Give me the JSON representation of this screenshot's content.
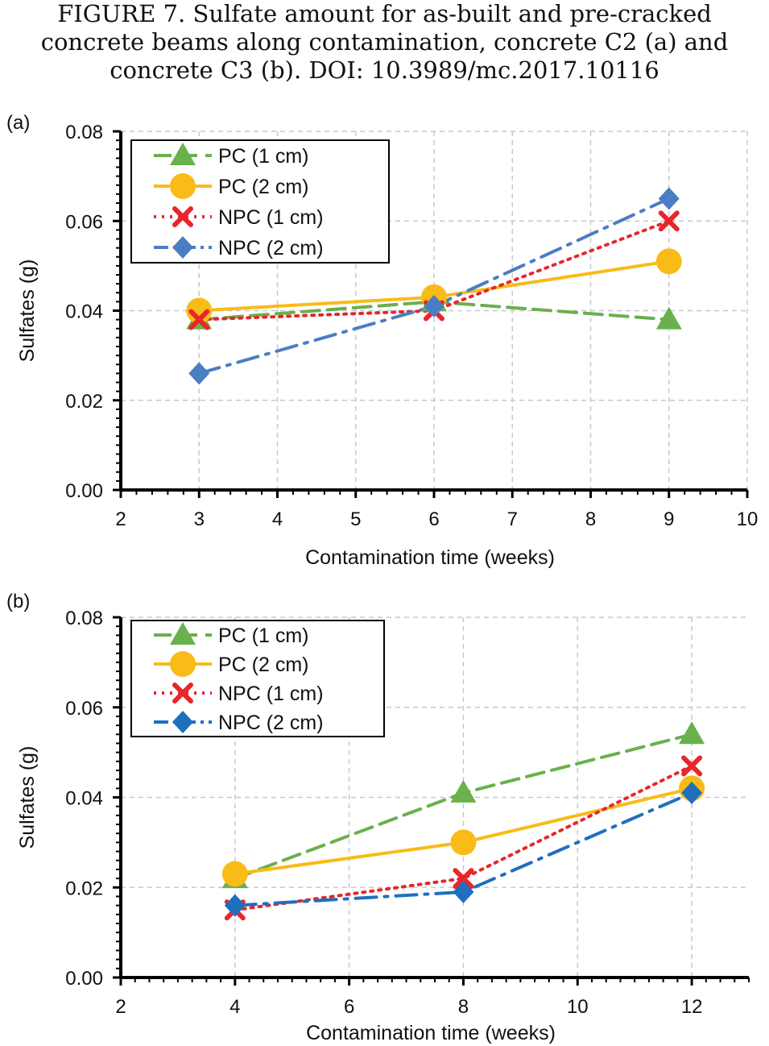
{
  "caption": {
    "line1": "FIGURE 7.    Sulfate amount for as-built and pre-cracked",
    "line2": "concrete beams along contamination, concrete C2 (a) and",
    "line3": "concrete C3 (b). DOI: 10.3989/mc.2017.10116"
  },
  "colors": {
    "pc1": "#6ab04c",
    "pc2": "#f9bb18",
    "npc1": "#e8262b",
    "npc2_a": "#4a7ec2",
    "npc2_b": "#1f6fbf"
  },
  "chart_data": [
    {
      "type": "line",
      "panel_label": "(a)",
      "title": "",
      "xlabel": "Contamination time (weeks)",
      "ylabel": "Sulfates (g)",
      "xlim": [
        2,
        10
      ],
      "ylim": [
        0,
        0.08
      ],
      "xticks": [
        "2",
        "3",
        "4",
        "5",
        "6",
        "7",
        "8",
        "9",
        "10"
      ],
      "yticks": [
        "0.00",
        "0.02",
        "0.04",
        "0.06",
        "0.08"
      ],
      "grid": true,
      "legend_position": "top-left",
      "series": [
        {
          "name": "PC (1 cm)",
          "x": [
            3,
            6,
            9
          ],
          "values": [
            0.038,
            0.042,
            0.038
          ]
        },
        {
          "name": "PC (2 cm)",
          "x": [
            3,
            6,
            9
          ],
          "values": [
            0.04,
            0.043,
            0.051
          ]
        },
        {
          "name": "NPC (1 cm)",
          "x": [
            3,
            6,
            9
          ],
          "values": [
            0.038,
            0.04,
            0.06
          ]
        },
        {
          "name": "NPC (2 cm)",
          "x": [
            3,
            6,
            9
          ],
          "values": [
            0.026,
            0.041,
            0.065
          ]
        }
      ]
    },
    {
      "type": "line",
      "panel_label": "(b)",
      "title": "",
      "xlabel": "Contamination time (weeks)",
      "ylabel": "Sulfates (g)",
      "xlim": [
        2,
        13
      ],
      "ylim": [
        0,
        0.08
      ],
      "xticks": [
        "2",
        "4",
        "6",
        "8",
        "10",
        "12"
      ],
      "yticks": [
        "0.00",
        "0.02",
        "0.04",
        "0.06",
        "0.08"
      ],
      "grid": true,
      "legend_position": "top-left",
      "series": [
        {
          "name": "PC (1 cm)",
          "x": [
            4,
            8,
            12
          ],
          "values": [
            0.022,
            0.041,
            0.054
          ]
        },
        {
          "name": "PC (2 cm)",
          "x": [
            4,
            8,
            12
          ],
          "values": [
            0.023,
            0.03,
            0.042
          ]
        },
        {
          "name": "NPC (1 cm)",
          "x": [
            4,
            8,
            12
          ],
          "values": [
            0.015,
            0.022,
            0.047
          ]
        },
        {
          "name": "NPC (2 cm)",
          "x": [
            4,
            8,
            12
          ],
          "values": [
            0.016,
            0.019,
            0.041
          ]
        }
      ]
    }
  ]
}
